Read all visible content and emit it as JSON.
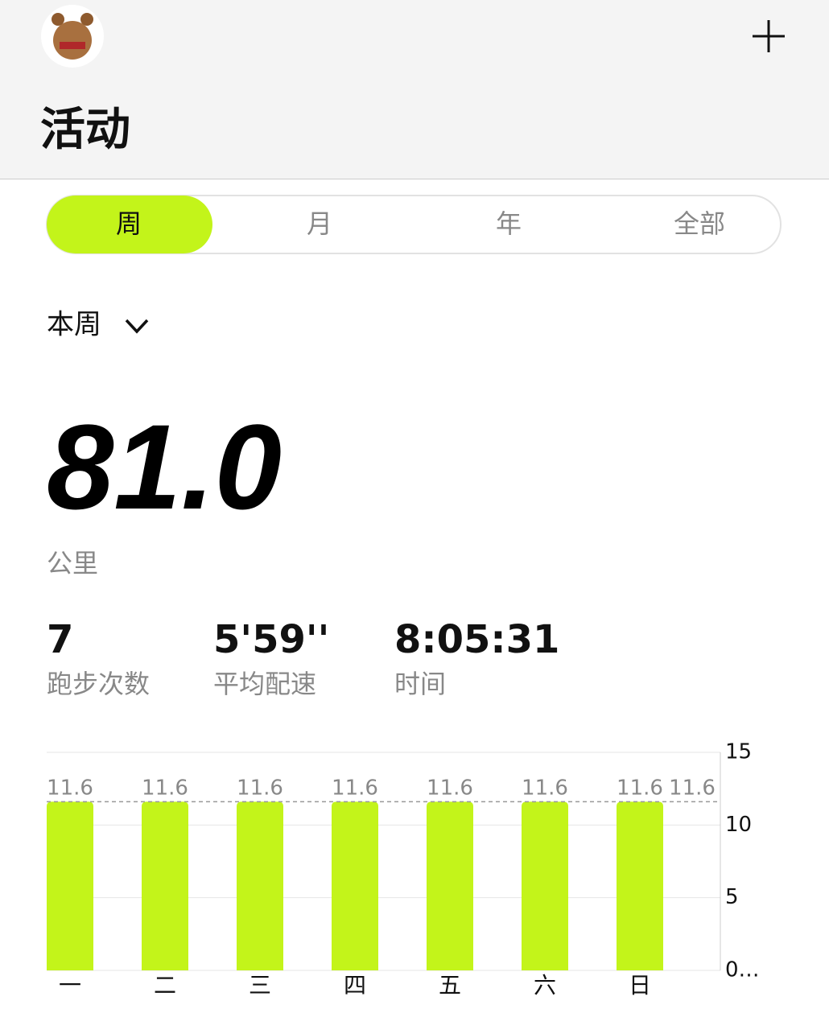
{
  "header": {
    "title": "活动"
  },
  "tabs": [
    "周",
    "月",
    "年",
    "全部"
  ],
  "period": "本周",
  "total": {
    "value": "81.0",
    "unit": "公里"
  },
  "stats": [
    {
      "value": "7",
      "label": "跑步次数"
    },
    {
      "value": "5'59''",
      "label": "平均配速"
    },
    {
      "value": "8:05:31",
      "label": "时间"
    }
  ],
  "chart_data": {
    "type": "bar",
    "categories": [
      "一",
      "二",
      "三",
      "四",
      "五",
      "六",
      "日"
    ],
    "values": [
      11.6,
      11.6,
      11.6,
      11.6,
      11.6,
      11.6,
      11.6
    ],
    "color": "#c3f41a",
    "average": 11.6,
    "ylim": [
      0,
      15
    ],
    "yticks": [
      {
        "value": 0,
        "label": "0…"
      },
      5,
      10,
      15
    ],
    "grid": true
  }
}
